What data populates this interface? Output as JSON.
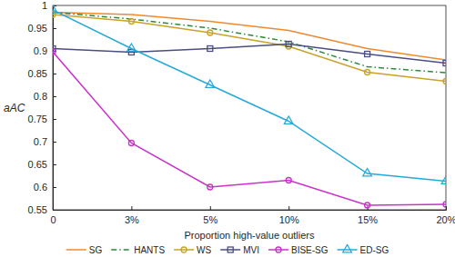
{
  "chart_data": {
    "type": "line",
    "x_label": "Proportion high-value outliers",
    "y_label": "aAC",
    "categories": [
      "0",
      "3%",
      "5%",
      "10%",
      "15%",
      "20%"
    ],
    "ylim": [
      0.55,
      1
    ],
    "yticks": [
      0.55,
      0.6,
      0.65,
      0.7,
      0.75,
      0.8,
      0.85,
      0.9,
      0.95,
      1
    ],
    "grid": false,
    "legend": "bottom",
    "series": [
      {
        "name": "SG",
        "color": "#f0892e",
        "line_style": "solid",
        "marker": "none",
        "values": [
          0.985,
          0.98,
          0.965,
          0.945,
          0.905,
          0.88
        ]
      },
      {
        "name": "HANTS",
        "color": "#2a8a3a",
        "line_style": "dashdot",
        "marker": "none",
        "values": [
          0.985,
          0.97,
          0.95,
          0.92,
          0.865,
          0.852
        ]
      },
      {
        "name": "WS",
        "color": "#c9a227",
        "line_style": "solid",
        "marker": "circle",
        "values": [
          0.98,
          0.965,
          0.94,
          0.91,
          0.853,
          0.833
        ]
      },
      {
        "name": "MVI",
        "color": "#4b4e80",
        "line_style": "solid",
        "marker": "square",
        "values": [
          0.905,
          0.897,
          0.905,
          0.915,
          0.893,
          0.873
        ]
      },
      {
        "name": "BISE-SG",
        "color": "#c832c8",
        "line_style": "solid",
        "marker": "circle",
        "values": [
          0.898,
          0.697,
          0.6,
          0.615,
          0.56,
          0.562
        ]
      },
      {
        "name": "ED-SG",
        "color": "#26a9d9",
        "line_style": "solid",
        "marker": "triangle",
        "values": [
          0.99,
          0.905,
          0.825,
          0.745,
          0.63,
          0.613
        ]
      }
    ]
  }
}
